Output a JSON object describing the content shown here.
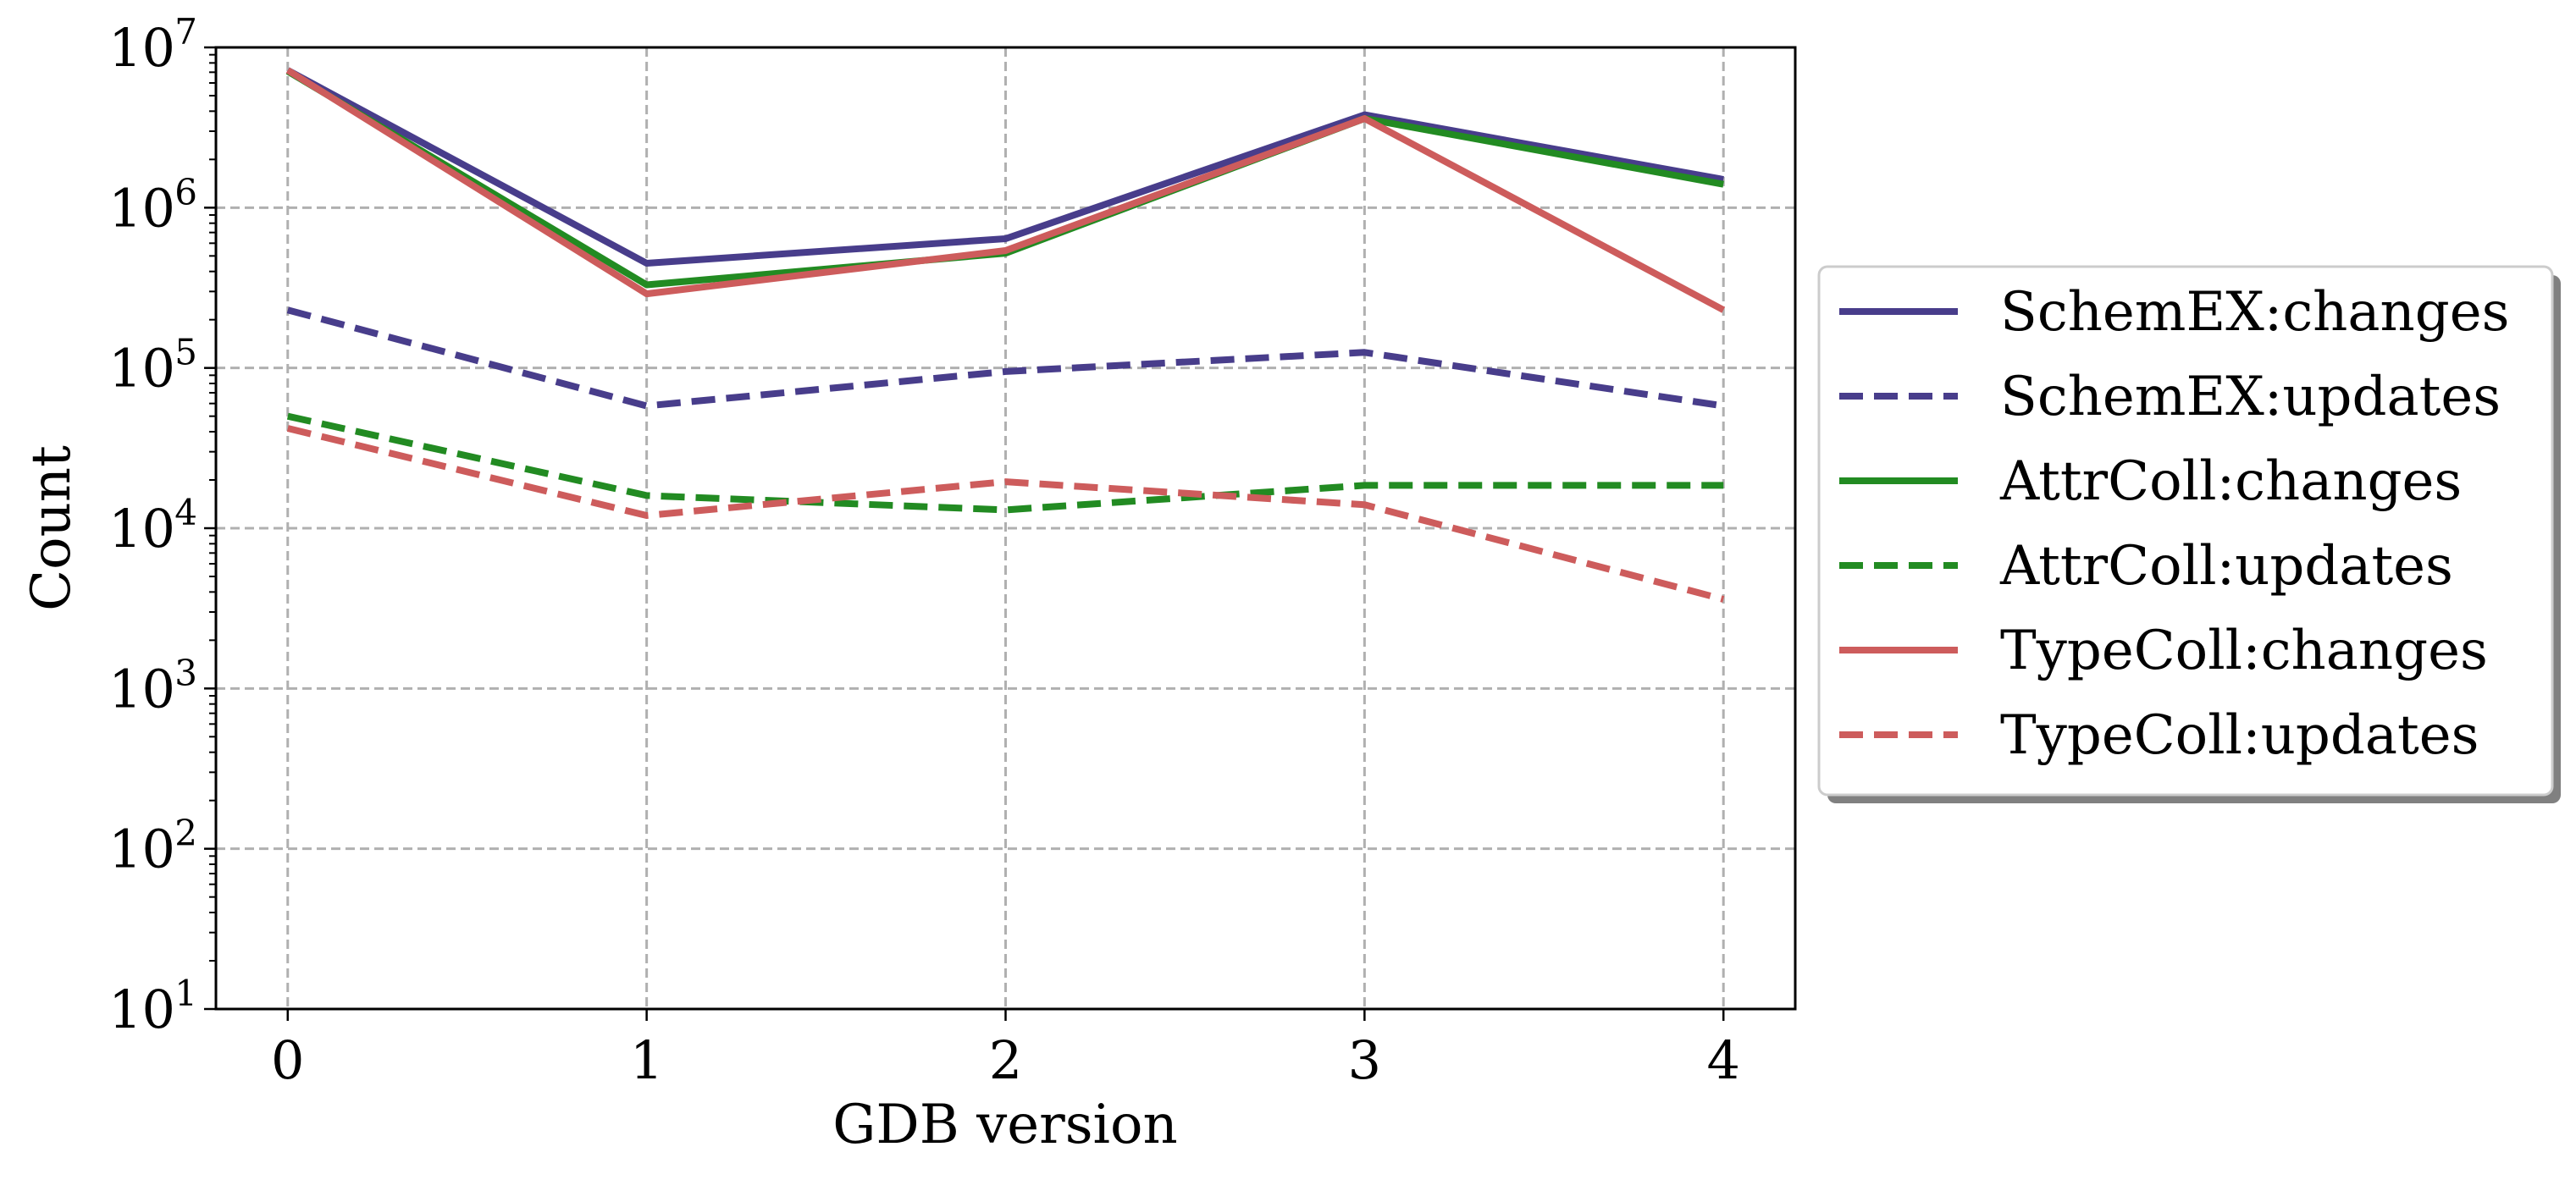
{
  "chart_data": {
    "type": "line",
    "xlabel": "GDB version",
    "ylabel": "Count",
    "x": [
      0,
      1,
      2,
      3,
      4
    ],
    "x_ticks": [
      "0",
      "1",
      "2",
      "3",
      "4"
    ],
    "y_scale": "log",
    "ylim": [
      10,
      10000000
    ],
    "y_ticks": [
      {
        "value": 10,
        "base": "10",
        "exp": "1"
      },
      {
        "value": 100,
        "base": "10",
        "exp": "2"
      },
      {
        "value": 1000,
        "base": "10",
        "exp": "3"
      },
      {
        "value": 10000,
        "base": "10",
        "exp": "4"
      },
      {
        "value": 100000,
        "base": "10",
        "exp": "5"
      },
      {
        "value": 1000000,
        "base": "10",
        "exp": "6"
      },
      {
        "value": 10000000,
        "base": "10",
        "exp": "7"
      }
    ],
    "grid": true,
    "legend_position": "outside right",
    "series": [
      {
        "name": "SchemEX:changes",
        "color": "#483d8b",
        "dashed": false,
        "values": [
          7200000,
          450000,
          640000,
          3800000,
          1500000
        ]
      },
      {
        "name": "SchemEX:updates",
        "color": "#483d8b",
        "dashed": true,
        "values": [
          230000,
          58000,
          95000,
          125000,
          58000
        ]
      },
      {
        "name": "AttrColl:changes",
        "color": "#228b22",
        "dashed": false,
        "values": [
          7100000,
          330000,
          520000,
          3600000,
          1400000
        ]
      },
      {
        "name": "AttrColl:updates",
        "color": "#228b22",
        "dashed": true,
        "values": [
          50000,
          16000,
          13000,
          18500,
          18500
        ]
      },
      {
        "name": "TypeColl:changes",
        "color": "#cd5c5c",
        "dashed": false,
        "values": [
          7200000,
          290000,
          540000,
          3600000,
          230000
        ]
      },
      {
        "name": "TypeColl:updates",
        "color": "#cd5c5c",
        "dashed": true,
        "values": [
          42000,
          12000,
          19500,
          14000,
          3600
        ]
      }
    ]
  }
}
